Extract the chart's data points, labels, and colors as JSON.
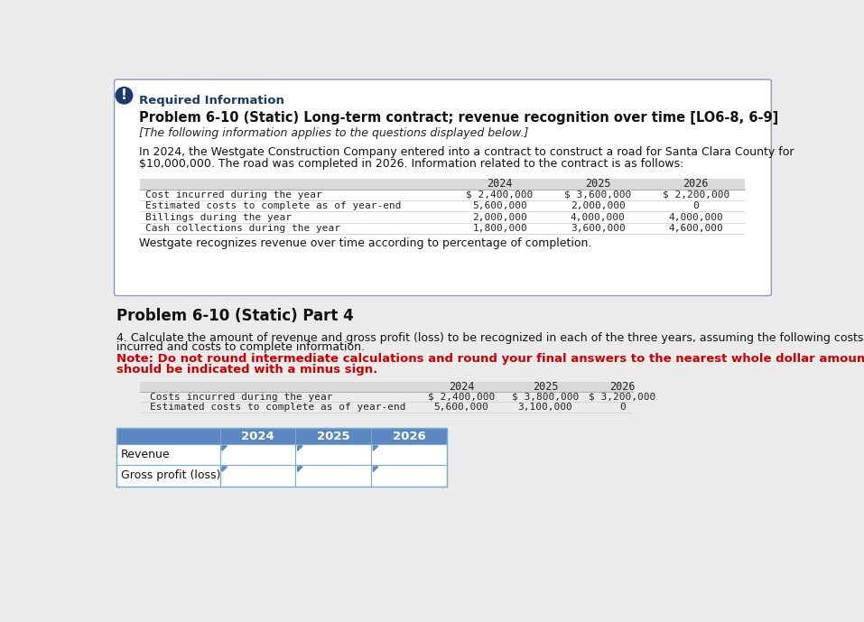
{
  "page_bg": "#ebebeb",
  "box_bg": "#ffffff",
  "box_border": "#8899bb",
  "exclamation_circle_color": "#1b3a6b",
  "exclamation_text_color": "#ffffff",
  "required_info_color": "#1b3a6b",
  "title_text": "Problem 6-10 (Static) Long-term contract; revenue recognition over time [LO6-8, 6-9]",
  "subtitle_italic": "[The following information applies to the questions displayed below.]",
  "intro_line1": "In 2024, the Westgate Construction Company entered into a contract to construct a road for Santa Clara County for",
  "intro_line2": "$10,000,000. The road was completed in 2026. Information related to the contract is as follows:",
  "table1_header_bg": "#d9d9d9",
  "table1_rows": [
    "Cost incurred during the year",
    "Estimated costs to complete as of year-end",
    "Billings during the year",
    "Cash collections during the year"
  ],
  "table1_years": [
    "2024",
    "2025",
    "2026"
  ],
  "table1_data": [
    [
      "$ 2,400,000",
      "$ 3,600,000",
      "$ 2,200,000"
    ],
    [
      "5,600,000",
      "2,000,000",
      "0"
    ],
    [
      "2,000,000",
      "4,000,000",
      "4,000,000"
    ],
    [
      "1,800,000",
      "3,600,000",
      "4,600,000"
    ]
  ],
  "westgate_note": "Westgate recognizes revenue over time according to percentage of completion.",
  "part4_title": "Problem 6-10 (Static) Part 4",
  "part4_q_bold": "4.",
  "part4_q_rest": " Calculate the amount of revenue and gross profit (loss) to be recognized in each of the three years, assuming the following costs",
  "part4_q_line2": "incurred and costs to complete information.",
  "part4_note_line1": "Note: Do not round intermediate calculations and round your final answers to the nearest whole dollar amount. Loss amounts",
  "part4_note_line2": "should be indicated with a minus sign.",
  "table2_rows": [
    "Costs incurred during the year",
    "Estimated costs to complete as of year-end"
  ],
  "table2_years": [
    "2024",
    "2025",
    "2026"
  ],
  "table2_data": [
    [
      "$ 2,400,000",
      "$ 3,800,000",
      "$ 3,200,000"
    ],
    [
      "5,600,000",
      "3,100,000",
      "0"
    ]
  ],
  "table3_rows": [
    "Revenue",
    "Gross profit (loss)"
  ],
  "table3_years": [
    "2024",
    "2025",
    "2026"
  ],
  "header_bg": "#5b88c0",
  "header_text": "#ffffff",
  "cell_bg": "#ffffff",
  "cell_border": "#7aabcc",
  "triangle_color": "#5b88c0"
}
